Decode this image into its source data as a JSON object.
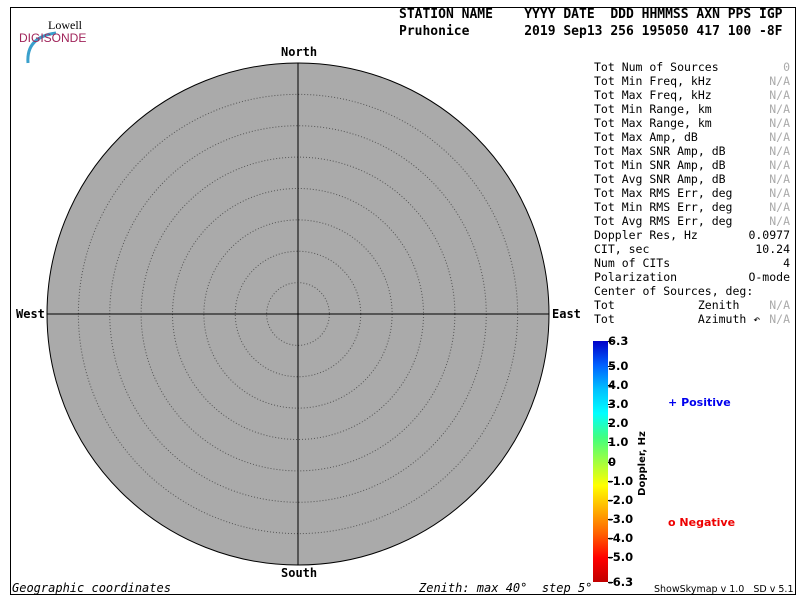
{
  "logo": {
    "top": "Lowell",
    "bottom": "DIGISONDE"
  },
  "header": {
    "labels": "STATION NAME    YYYY DATE  DDD HHMMSS AXN PPS IGP",
    "values": "Pruhonice       2019 Sep13 256 195050 417 100 -8F"
  },
  "directions": {
    "north": "North",
    "south": "South",
    "east": "East",
    "west": "West"
  },
  "stats": [
    {
      "label": "Tot Num of Sources",
      "value": "0",
      "na": true
    },
    {
      "label": "Tot Min Freq, kHz",
      "value": "N/A",
      "na": true
    },
    {
      "label": "Tot Max Freq, kHz",
      "value": "N/A",
      "na": true
    },
    {
      "label": "Tot Min Range, km",
      "value": "N/A",
      "na": true
    },
    {
      "label": "Tot Max Range, km",
      "value": "N/A",
      "na": true
    },
    {
      "label": "Tot Max Amp, dB",
      "value": "N/A",
      "na": true
    },
    {
      "label": "Tot Max SNR Amp, dB",
      "value": "N/A",
      "na": true
    },
    {
      "label": "Tot Min SNR Amp, dB",
      "value": "N/A",
      "na": true
    },
    {
      "label": "Tot Avg SNR Amp, dB",
      "value": "N/A",
      "na": true
    },
    {
      "label": "Tot Max RMS Err, deg",
      "value": "N/A",
      "na": true
    },
    {
      "label": "Tot Min RMS Err, deg",
      "value": "N/A",
      "na": true
    },
    {
      "label": "Tot Avg RMS Err, deg",
      "value": "N/A",
      "na": true
    },
    {
      "label": "Doppler Res, Hz",
      "value": "0.0977",
      "na": false
    },
    {
      "label": "CIT, sec",
      "value": "10.24",
      "na": false
    },
    {
      "label": "Num of CITs",
      "value": "4",
      "na": false
    },
    {
      "label": "Polarization",
      "value": "O-mode",
      "na": false
    },
    {
      "label": "Center of Sources, deg:",
      "value": "",
      "na": false
    },
    {
      "label": "Tot            Zenith",
      "value": "N/A",
      "na": true
    },
    {
      "label": "Tot            Azimuth ↶",
      "value": "N/A",
      "na": true
    }
  ],
  "colorbar": {
    "title": "Doppler, Hz",
    "min": -6.3,
    "max": 6.3,
    "ticks": [
      "6.3",
      "5.0",
      "4.0",
      "3.0",
      "2.0",
      "1.0",
      "0",
      "-1.0",
      "-2.0",
      "-3.0",
      "-4.0",
      "-5.0",
      "-6.3"
    ]
  },
  "legend": {
    "positive": {
      "symbol": "+",
      "label": "Positive",
      "color": "#0000ee"
    },
    "negative": {
      "symbol": "o",
      "label": "Negative",
      "color": "#ee0000"
    }
  },
  "skymap": {
    "background": "#aaaaaa",
    "zenith_max_deg": 40,
    "step_deg": 5
  },
  "footer": {
    "left": "Geographic coordinates",
    "center": "Zenith: max 40°  step 5°",
    "right": "ShowSkymap v 1.0   SD v 5.1"
  }
}
